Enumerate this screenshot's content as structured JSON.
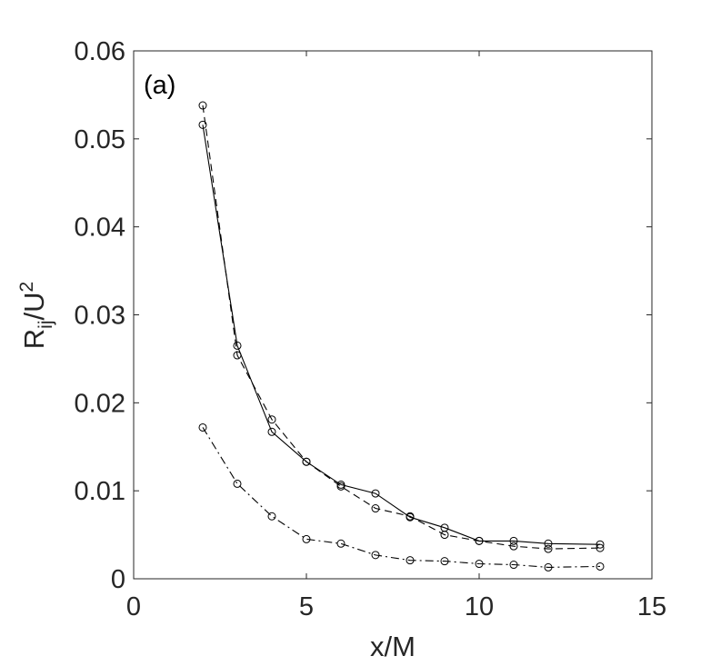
{
  "chart_data": {
    "type": "line",
    "panel_label": "(a)",
    "xlabel": "x/M",
    "ylabel": {
      "base": "R",
      "sub": "ij",
      "mid": "/U",
      "sup": "2"
    },
    "xlim": [
      0,
      15
    ],
    "ylim": [
      0,
      0.06
    ],
    "xticks": [
      0,
      5,
      10,
      15
    ],
    "xtick_labels": [
      "0",
      "5",
      "10",
      "15"
    ],
    "yticks": [
      0,
      0.01,
      0.02,
      0.03,
      0.04,
      0.05,
      0.06
    ],
    "ytick_labels": [
      "0",
      "0.01",
      "0.02",
      "0.03",
      "0.04",
      "0.05",
      "0.06"
    ],
    "grid": false,
    "x": [
      2,
      3,
      4,
      5,
      6,
      7,
      8,
      9,
      10,
      11,
      12,
      13.5
    ],
    "series": [
      {
        "style": "solid",
        "marker": "circle",
        "color": "#000000",
        "values": [
          0.0516,
          0.0265,
          0.0167,
          0.0133,
          0.0107,
          0.0097,
          0.007,
          0.0058,
          0.0043,
          0.0043,
          0.004,
          0.0039
        ]
      },
      {
        "style": "dashed",
        "marker": "circle",
        "color": "#000000",
        "values": [
          0.0538,
          0.0254,
          0.0181,
          0.0133,
          0.0105,
          0.008,
          0.0071,
          0.005,
          0.0043,
          0.0037,
          0.0034,
          0.0035
        ]
      },
      {
        "style": "dashdot",
        "marker": "circle",
        "color": "#000000",
        "values": [
          0.0172,
          0.0108,
          0.0071,
          0.0045,
          0.004,
          0.0027,
          0.0021,
          0.002,
          0.0017,
          0.0016,
          0.0013,
          0.0014
        ]
      }
    ]
  }
}
